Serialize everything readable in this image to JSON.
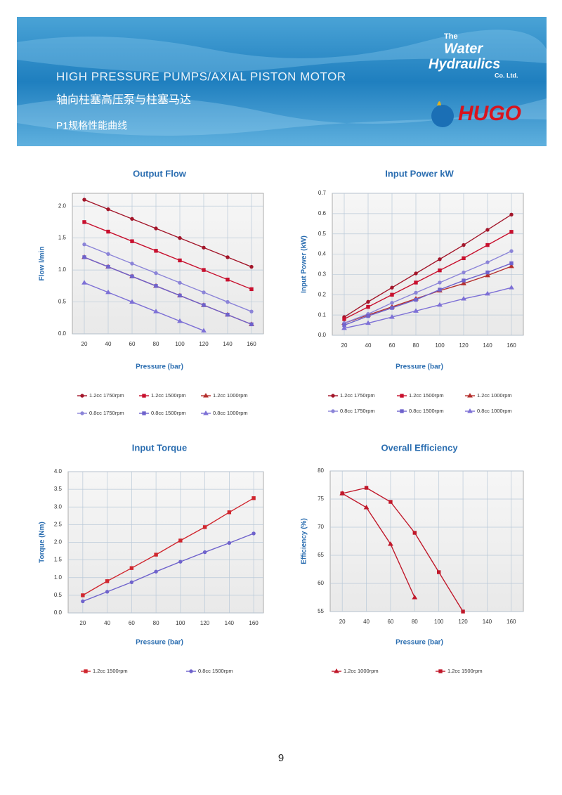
{
  "header": {
    "title": "HIGH PRESSURE PUMPS/AXIAL PISTON MOTOR",
    "title_cn": "轴向柱塞高压泵与柱塞马达",
    "subtitle": "P1规格性能曲线",
    "logo": {
      "the": "The",
      "water": "Water",
      "hydraulics": "Hydraulics",
      "company": "Co. Ltd.",
      "brand": "HUGO"
    }
  },
  "page_number": "9",
  "chart_data": [
    {
      "type": "line",
      "title": "Output Flow",
      "x_label": "Pressure (bar)",
      "y_label": "Flow l/min",
      "x": [
        20,
        40,
        60,
        80,
        100,
        120,
        140,
        160
      ],
      "xlim": [
        10,
        170
      ],
      "xticks": [
        20,
        40,
        60,
        80,
        100,
        120,
        140,
        160
      ],
      "ylim": [
        0,
        2.2
      ],
      "yticks": [
        {
          "value": 0,
          "label": "0.0"
        },
        {
          "value": 0.5,
          "label": "0.5"
        },
        {
          "value": 1,
          "label": "1.0"
        },
        {
          "value": 1.5,
          "label": "1.5"
        },
        {
          "value": 2,
          "label": "2.0"
        }
      ],
      "grid": true,
      "series": [
        {
          "name": "1.2cc 1750rpm",
          "color": "#a3162a",
          "marker": "circle",
          "values": [
            2.1,
            1.95,
            1.8,
            1.65,
            1.5,
            1.35,
            1.2,
            1.05
          ]
        },
        {
          "name": "1.2cc 1500rpm",
          "color": "#c8102e",
          "marker": "square",
          "values": [
            1.75,
            1.6,
            1.45,
            1.3,
            1.15,
            1.0,
            0.85,
            0.7
          ]
        },
        {
          "name": "1.2cc 1000rpm",
          "color": "#b5302e",
          "marker": "triangle",
          "values": [
            1.2,
            1.05,
            0.9,
            0.75,
            0.6,
            0.45,
            0.3,
            0.15
          ]
        },
        {
          "name": "0.8cc 1750rpm",
          "color": "#8b84d8",
          "marker": "circle",
          "values": [
            1.4,
            1.25,
            1.1,
            0.95,
            0.8,
            0.65,
            0.5,
            0.35
          ]
        },
        {
          "name": "0.8cc 1500rpm",
          "color": "#6f63cc",
          "marker": "square",
          "values": [
            1.2,
            1.05,
            0.9,
            0.75,
            0.6,
            0.45,
            0.3,
            0.15
          ]
        },
        {
          "name": "0.8cc 1000rpm",
          "color": "#7d70d6",
          "marker": "triangle",
          "values": [
            0.8,
            0.65,
            0.5,
            0.35,
            0.2,
            0.05,
            null,
            null
          ]
        }
      ]
    },
    {
      "type": "line",
      "title": "Input Power kW",
      "x_label": "Pressure (bar)",
      "y_label": "Input Power (kW)",
      "x": [
        20,
        40,
        60,
        80,
        100,
        120,
        140,
        160
      ],
      "xlim": [
        10,
        170
      ],
      "xticks": [
        20,
        40,
        60,
        80,
        100,
        120,
        140,
        160
      ],
      "ylim": [
        0,
        0.7
      ],
      "yticks": [
        {
          "value": 0,
          "label": "0.0"
        },
        0.1,
        0.2,
        0.3,
        0.4,
        0.5,
        0.6,
        0.7
      ],
      "grid": true,
      "series": [
        {
          "name": "1.2cc 1750rpm",
          "color": "#a3162a",
          "marker": "circle",
          "values": [
            0.09,
            0.165,
            0.235,
            0.305,
            0.375,
            0.445,
            0.52,
            0.595
          ]
        },
        {
          "name": "1.2cc 1500rpm",
          "color": "#c8102e",
          "marker": "square",
          "values": [
            0.08,
            0.14,
            0.2,
            0.26,
            0.32,
            0.38,
            0.445,
            0.51
          ]
        },
        {
          "name": "1.2cc 1000rpm",
          "color": "#b5302e",
          "marker": "triangle",
          "values": [
            0.06,
            0.1,
            0.14,
            0.18,
            0.22,
            0.255,
            0.295,
            0.34
          ]
        },
        {
          "name": "0.8cc 1750rpm",
          "color": "#8b84d8",
          "marker": "circle",
          "values": [
            0.06,
            0.105,
            0.16,
            0.21,
            0.26,
            0.31,
            0.36,
            0.415
          ]
        },
        {
          "name": "0.8cc 1500rpm",
          "color": "#6f63cc",
          "marker": "square",
          "values": [
            0.05,
            0.095,
            0.135,
            0.175,
            0.225,
            0.27,
            0.31,
            0.355
          ]
        },
        {
          "name": "0.8cc 1000rpm",
          "color": "#7d70d6",
          "marker": "triangle",
          "values": [
            0.035,
            0.06,
            0.09,
            0.12,
            0.15,
            0.18,
            0.205,
            0.235
          ]
        }
      ]
    },
    {
      "type": "line",
      "title": "Input Torque",
      "x_label": "Pressure (bar)",
      "y_label": "Torque (Nm)",
      "x": [
        20,
        40,
        60,
        80,
        100,
        120,
        140,
        160
      ],
      "xlim": [
        8,
        168
      ],
      "xticks": [
        20,
        40,
        60,
        80,
        100,
        120,
        140,
        160
      ],
      "ylim": [
        0,
        4
      ],
      "yticks": [
        {
          "value": 0,
          "label": "0.0"
        },
        0.5,
        {
          "value": 1,
          "label": "1.0"
        },
        1.5,
        {
          "value": 2,
          "label": "2.0"
        },
        2.5,
        {
          "value": 3,
          "label": "3.0"
        },
        3.5,
        {
          "value": 4,
          "label": "4.0"
        }
      ],
      "grid": true,
      "series": [
        {
          "name": "1.2cc 1500rpm",
          "color": "#d0262e",
          "marker": "square",
          "values": [
            0.5,
            0.9,
            1.27,
            1.65,
            2.05,
            2.43,
            2.85,
            3.25
          ]
        },
        {
          "name": "0.8cc 1500rpm",
          "color": "#6f63cc",
          "marker": "circle",
          "values": [
            0.33,
            0.6,
            0.87,
            1.17,
            1.45,
            1.72,
            1.98,
            2.25
          ]
        }
      ]
    },
    {
      "type": "line",
      "title": "Overall Efficiency",
      "x_label": "Pressure (bar)",
      "y_label": "Efficiency (%)",
      "x": [
        20,
        40,
        60,
        80,
        100,
        120,
        140,
        160
      ],
      "xlim": [
        10,
        170
      ],
      "xticks": [
        20,
        40,
        60,
        80,
        100,
        120,
        140,
        160
      ],
      "ylim": [
        55,
        80
      ],
      "yticks": [
        55,
        60,
        65,
        70,
        75,
        80
      ],
      "grid": true,
      "series": [
        {
          "name": "1.2cc 1000rpm",
          "color": "#c0182a",
          "marker": "triangle",
          "values": [
            76,
            73.5,
            67,
            57.5,
            null,
            null,
            null,
            null
          ]
        },
        {
          "name": "1.2cc 1500rpm",
          "color": "#c0182a",
          "marker": "square",
          "values": [
            76,
            77,
            74.5,
            69,
            62,
            55,
            null,
            null
          ]
        }
      ]
    }
  ]
}
